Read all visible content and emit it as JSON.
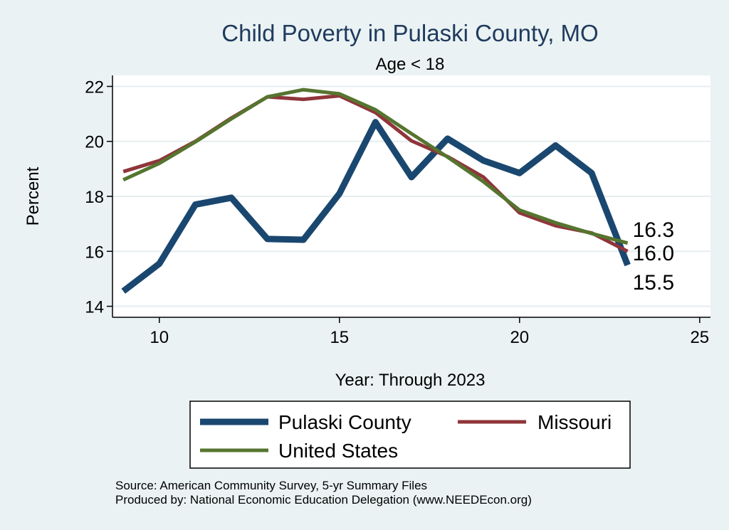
{
  "chart_data": {
    "type": "line",
    "title": "Child Poverty in Pulaski County, MO",
    "subtitle": "Age < 18",
    "xlabel": "Year: Through 2023",
    "ylabel": "Percent",
    "xlim": [
      8.7,
      25.3
    ],
    "ylim": [
      13.6,
      22.4
    ],
    "xticks": [
      10,
      15,
      20,
      25
    ],
    "yticks": [
      14,
      16,
      18,
      20,
      22
    ],
    "grid": true,
    "legend_position": "bottom",
    "x": [
      9,
      10,
      11,
      12,
      13,
      14,
      15,
      16,
      17,
      18,
      19,
      20,
      21,
      22,
      23
    ],
    "series": [
      {
        "name": "Pulaski County",
        "color": "#1a476f",
        "values": [
          14.55,
          15.55,
          17.7,
          17.95,
          16.45,
          16.42,
          18.1,
          20.7,
          18.7,
          20.1,
          19.3,
          18.85,
          19.85,
          18.85,
          15.5
        ],
        "end_label": "15.5"
      },
      {
        "name": "Missouri",
        "color": "#90353b",
        "values": [
          18.9,
          19.3,
          20.0,
          20.85,
          21.62,
          21.53,
          21.66,
          21.05,
          20.02,
          19.45,
          18.7,
          17.4,
          16.93,
          16.67,
          16.0
        ],
        "end_label": "16.0"
      },
      {
        "name": "United States",
        "color": "#55752f",
        "values": [
          18.6,
          19.2,
          19.98,
          20.82,
          21.62,
          21.88,
          21.73,
          21.15,
          20.28,
          19.43,
          18.53,
          17.5,
          17.04,
          16.65,
          16.3
        ],
        "end_label": "16.3"
      }
    ]
  },
  "notes": {
    "source": "Source: American Community Survey, 5-yr Summary Files",
    "producer": "Produced by: National Economic Education Delegation (www.NEEDEcon.org)"
  }
}
